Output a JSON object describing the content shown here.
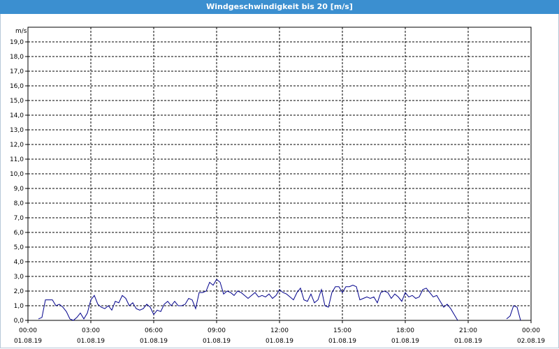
{
  "window": {
    "title": "Windgeschwindigkeit bis 20 [m/s]",
    "title_bar_color": "#3b8fd0"
  },
  "chart_data": {
    "type": "line",
    "title": "Windgeschwindigkeit bis 20 [m/s]",
    "ylabel": "m/s",
    "xlabel": "",
    "ylim": [
      0,
      20
    ],
    "yticks": [
      "0,0",
      "1,0",
      "2,0",
      "3,0",
      "4,0",
      "5,0",
      "6,0",
      "7,0",
      "8,0",
      "9,0",
      "10,0",
      "11,0",
      "12,0",
      "13,0",
      "14,0",
      "15,0",
      "16,0",
      "17,0",
      "18,0",
      "19,0"
    ],
    "xlim": [
      "01.08.19 00:00",
      "02.08.19 00:00"
    ],
    "xticks": [
      {
        "time": "00:00",
        "date": "01.08.19"
      },
      {
        "time": "03:00",
        "date": "01.08.19"
      },
      {
        "time": "06:00",
        "date": "01.08.19"
      },
      {
        "time": "09:00",
        "date": "01.08.19"
      },
      {
        "time": "12:00",
        "date": "01.08.19"
      },
      {
        "time": "15:00",
        "date": "01.08.19"
      },
      {
        "time": "18:00",
        "date": "01.08.19"
      },
      {
        "time": "21:00",
        "date": "01.08.19"
      },
      {
        "time": "00:00",
        "date": "02.08.19"
      }
    ],
    "grid": true,
    "series_color": "#00008b",
    "series": [
      {
        "name": "",
        "segments": [
          {
            "x": [
              "00:30",
              "00:40",
              "00:50",
              "01:00",
              "01:10",
              "01:20",
              "01:30",
              "01:40",
              "01:50",
              "02:00",
              "02:10",
              "02:20",
              "02:30",
              "02:40",
              "02:50",
              "03:00",
              "03:10",
              "03:20",
              "03:30",
              "03:40",
              "03:50",
              "04:00",
              "04:10",
              "04:20",
              "04:30",
              "04:40",
              "04:50",
              "05:00",
              "05:10",
              "05:20",
              "05:30",
              "05:40",
              "05:50",
              "06:00",
              "06:10",
              "06:20",
              "06:30",
              "06:40",
              "06:50",
              "07:00",
              "07:10",
              "07:20",
              "07:30",
              "07:40",
              "07:50",
              "08:00",
              "08:10",
              "08:20",
              "08:30",
              "08:40",
              "08:50",
              "09:00",
              "09:10",
              "09:20",
              "09:30",
              "09:40",
              "09:50",
              "10:00",
              "10:10",
              "10:20",
              "10:30",
              "10:40",
              "10:50",
              "11:00",
              "11:10",
              "11:20",
              "11:30",
              "11:40",
              "11:50",
              "12:00",
              "12:10",
              "12:20",
              "12:30",
              "12:40",
              "12:50",
              "13:00",
              "13:10",
              "13:20",
              "13:30",
              "13:40",
              "13:50",
              "14:00",
              "14:10",
              "14:20",
              "14:30",
              "14:40",
              "14:50",
              "15:00",
              "15:10",
              "15:20",
              "15:30",
              "15:40",
              "15:50",
              "16:00",
              "16:10",
              "16:20",
              "16:30",
              "16:40",
              "16:50",
              "17:00",
              "17:10",
              "17:20",
              "17:30",
              "17:40",
              "17:50",
              "18:00",
              "18:10",
              "18:20",
              "18:30",
              "18:40",
              "18:50",
              "19:00",
              "19:10",
              "19:20",
              "19:30",
              "19:40",
              "19:50",
              "20:00",
              "20:10",
              "20:20",
              "20:30"
            ],
            "y": [
              0.1,
              0.2,
              1.4,
              1.4,
              1.4,
              1.0,
              1.1,
              0.9,
              0.6,
              0.1,
              0.0,
              0.2,
              0.5,
              0.1,
              0.5,
              1.4,
              1.7,
              1.1,
              0.9,
              0.8,
              1.0,
              0.7,
              1.3,
              1.2,
              1.7,
              1.5,
              1.0,
              1.2,
              0.8,
              0.7,
              0.8,
              1.1,
              0.9,
              0.4,
              0.7,
              0.6,
              1.1,
              1.3,
              1.0,
              1.3,
              1.0,
              1.0,
              1.1,
              1.5,
              1.4,
              0.8,
              1.9,
              1.9,
              2.0,
              2.6,
              2.4,
              2.8,
              2.6,
              1.8,
              2.0,
              1.9,
              1.7,
              2.0,
              1.9,
              1.7,
              1.5,
              1.7,
              1.9,
              1.6,
              1.7,
              1.6,
              1.8,
              1.5,
              1.7,
              2.1,
              1.9,
              1.8,
              1.6,
              1.4,
              1.9,
              2.2,
              1.4,
              1.3,
              1.8,
              1.2,
              1.4,
              2.1,
              1.0,
              0.9,
              1.9,
              2.3,
              2.3,
              1.9,
              2.3,
              2.3,
              2.4,
              2.3,
              1.4,
              1.5,
              1.6,
              1.5,
              1.6,
              1.2,
              1.9,
              2.0,
              1.9,
              1.5,
              1.8,
              1.6,
              1.3,
              1.9,
              1.6,
              1.7,
              1.5,
              1.6,
              2.1,
              2.2,
              1.9,
              1.6,
              1.7,
              1.3,
              0.9,
              1.1,
              0.8,
              0.4,
              0.0
            ]
          },
          {
            "x": [
              "22:50",
              "23:00",
              "23:10",
              "23:20",
              "23:30"
            ],
            "y": [
              0.1,
              0.3,
              1.0,
              0.9,
              0.0
            ]
          }
        ]
      }
    ]
  }
}
